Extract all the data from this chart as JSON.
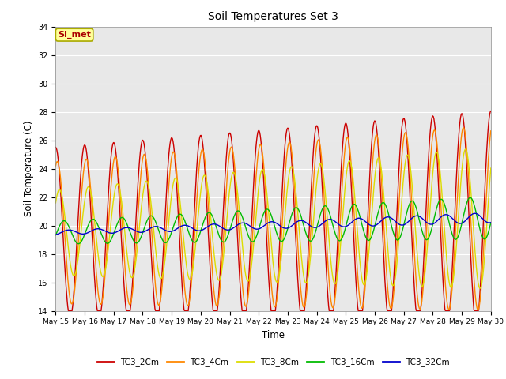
{
  "title": "Soil Temperatures Set 3",
  "xlabel": "Time",
  "ylabel": "Soil Temperature (C)",
  "ylim": [
    14,
    34
  ],
  "yticks": [
    14,
    16,
    18,
    20,
    22,
    24,
    26,
    28,
    30,
    32,
    34
  ],
  "annotation": "SI_met",
  "annotation_color": "#aa0000",
  "annotation_bg": "#ffff99",
  "annotation_border": "#aaaa00",
  "fig_facecolor": "#ffffff",
  "plot_facecolor": "#e8e8e8",
  "grid_color": "#ffffff",
  "series_labels": [
    "TC3_2Cm",
    "TC3_4Cm",
    "TC3_8Cm",
    "TC3_16Cm",
    "TC3_32Cm"
  ],
  "series_colors": [
    "#cc0000",
    "#ff8800",
    "#dddd00",
    "#00bb00",
    "#0000cc"
  ],
  "series_lw": [
    1.0,
    1.0,
    1.0,
    1.0,
    1.0
  ],
  "xtick_labels": [
    "May 15",
    "May 16",
    "May 17",
    "May 18",
    "May 19",
    "May 20",
    "May 21",
    "May 22",
    "May 23",
    "May 24",
    "May 25",
    "May 26",
    "May 27",
    "May 28",
    "May 29",
    "May 30"
  ],
  "n_days": 15,
  "pts_per_day": 48
}
